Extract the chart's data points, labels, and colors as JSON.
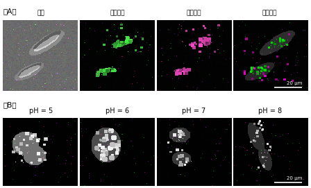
{
  "fig_width": 4.48,
  "fig_height": 2.71,
  "dpi": 100,
  "background_color": "#ffffff",
  "panel_A_label": "（A）",
  "panel_B_label": "（B）",
  "panel_A_titles": [
    "明场",
    "绿色通道",
    "红色通道",
    "叠加照片"
  ],
  "panel_B_titles": [
    "pH = 5",
    "pH = 6",
    "pH = 7",
    "pH = 8"
  ],
  "scale_bar_text": "20 μm",
  "title_fontsize": 6.5,
  "label_fontsize": 7.5,
  "scale_bar_fontsize": 5
}
